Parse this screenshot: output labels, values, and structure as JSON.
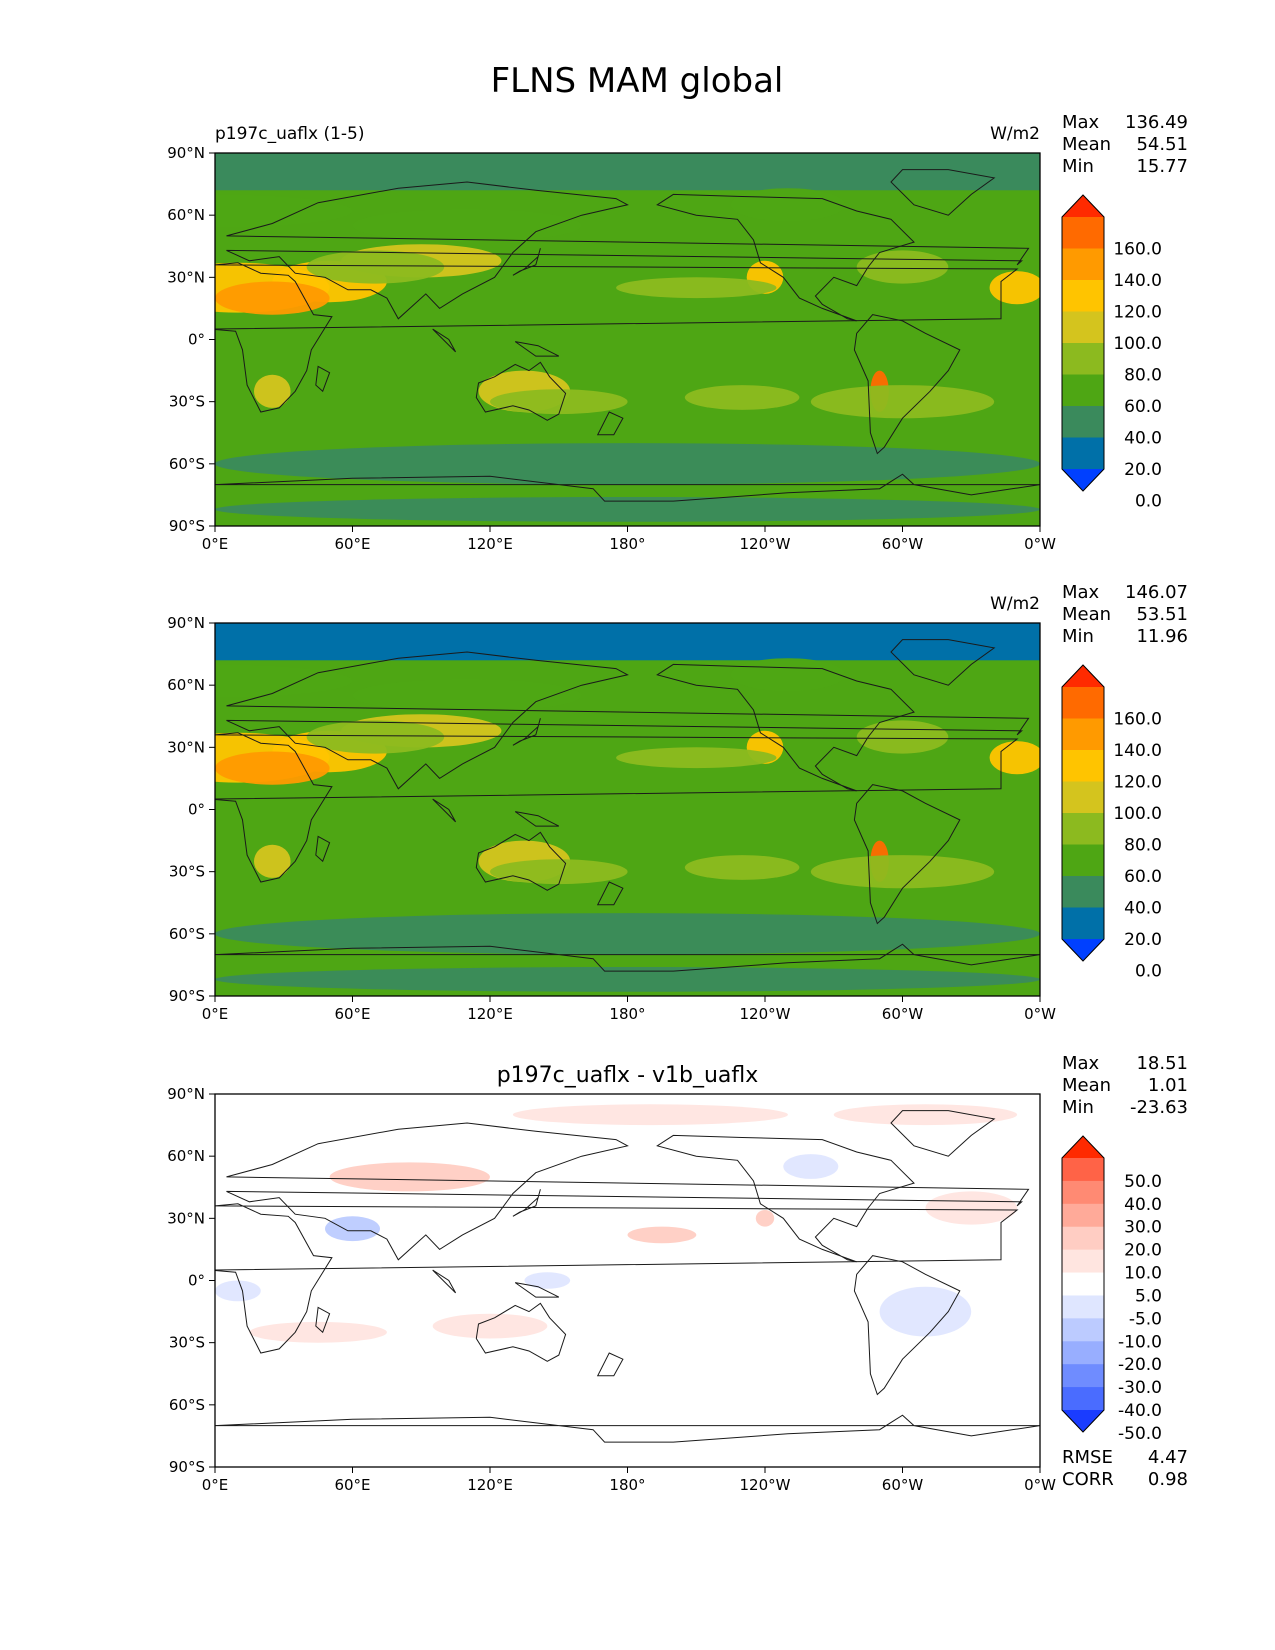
{
  "figure": {
    "title": "FLNS MAM global"
  },
  "chart_data": [
    {
      "type": "heatmap",
      "title_left": "p197c_uaflx (1-5)",
      "title_center": "",
      "units": "W/m2",
      "stats": [
        {
          "label": "Max",
          "value": "136.49"
        },
        {
          "label": "Mean",
          "value": "54.51"
        },
        {
          "label": "Min",
          "value": "15.77"
        }
      ],
      "x_ticks": [
        "0°E",
        "60°E",
        "120°E",
        "180°",
        "120°W",
        "60°W",
        "0°W"
      ],
      "y_ticks": [
        "90°N",
        "60°N",
        "30°N",
        "0°",
        "30°S",
        "60°S",
        "90°S"
      ],
      "xlim": [
        0,
        360
      ],
      "ylim": [
        -90,
        90
      ],
      "colorbar": {
        "labels": [
          "160.0",
          "140.0",
          "120.0",
          "100.0",
          "80.0",
          "60.0",
          "40.0",
          "20.0",
          "0.0"
        ],
        "colors": [
          "#ff2a00",
          "#ff6a00",
          "#ff9a00",
          "#ffc400",
          "#d4c41e",
          "#8cba1f",
          "#4ea614",
          "#3a8a5c",
          "#0070a8",
          "#0040ff"
        ],
        "extend": "both"
      },
      "footer_stats": []
    },
    {
      "type": "heatmap",
      "title_left": "",
      "title_center": "",
      "units": "W/m2",
      "stats": [
        {
          "label": "Max",
          "value": "146.07"
        },
        {
          "label": "Mean",
          "value": "53.51"
        },
        {
          "label": "Min",
          "value": "11.96"
        }
      ],
      "x_ticks": [
        "0°E",
        "60°E",
        "120°E",
        "180°",
        "120°W",
        "60°W",
        "0°W"
      ],
      "y_ticks": [
        "90°N",
        "60°N",
        "30°N",
        "0°",
        "30°S",
        "60°S",
        "90°S"
      ],
      "xlim": [
        0,
        360
      ],
      "ylim": [
        -90,
        90
      ],
      "colorbar": {
        "labels": [
          "160.0",
          "140.0",
          "120.0",
          "100.0",
          "80.0",
          "60.0",
          "40.0",
          "20.0",
          "0.0"
        ],
        "colors": [
          "#ff2a00",
          "#ff6a00",
          "#ff9a00",
          "#ffc400",
          "#d4c41e",
          "#8cba1f",
          "#4ea614",
          "#3a8a5c",
          "#0070a8",
          "#0040ff"
        ],
        "extend": "both"
      },
      "footer_stats": []
    },
    {
      "type": "heatmap",
      "title_left": "",
      "title_center": "p197c_uaflx - v1b_uaflx",
      "units": "",
      "stats": [
        {
          "label": "Max",
          "value": "18.51"
        },
        {
          "label": "Mean",
          "value": "1.01"
        },
        {
          "label": "Min",
          "value": "-23.63"
        }
      ],
      "x_ticks": [
        "0°E",
        "60°E",
        "120°E",
        "180°",
        "120°W",
        "60°W",
        "0°W"
      ],
      "y_ticks": [
        "90°N",
        "60°N",
        "30°N",
        "0°",
        "30°S",
        "60°S",
        "90°S"
      ],
      "xlim": [
        0,
        360
      ],
      "ylim": [
        -90,
        90
      ],
      "colorbar": {
        "labels": [
          "50.0",
          "40.0",
          "30.0",
          "20.0",
          "10.0",
          "5.0",
          "-5.0",
          "-10.0",
          "-20.0",
          "-30.0",
          "-40.0",
          "-50.0"
        ],
        "colors": [
          "#ff2a00",
          "#ff6347",
          "#ff8a73",
          "#ffaa99",
          "#ffcdc3",
          "#ffe5e0",
          "#ffffff",
          "#dfe6ff",
          "#bccbff",
          "#98aeff",
          "#6f8cff",
          "#4a6cff",
          "#1a3cff"
        ],
        "extend": "both"
      },
      "footer_stats": [
        {
          "label": "RMSE",
          "value": "4.47"
        },
        {
          "label": "CORR",
          "value": "0.98"
        }
      ]
    }
  ]
}
